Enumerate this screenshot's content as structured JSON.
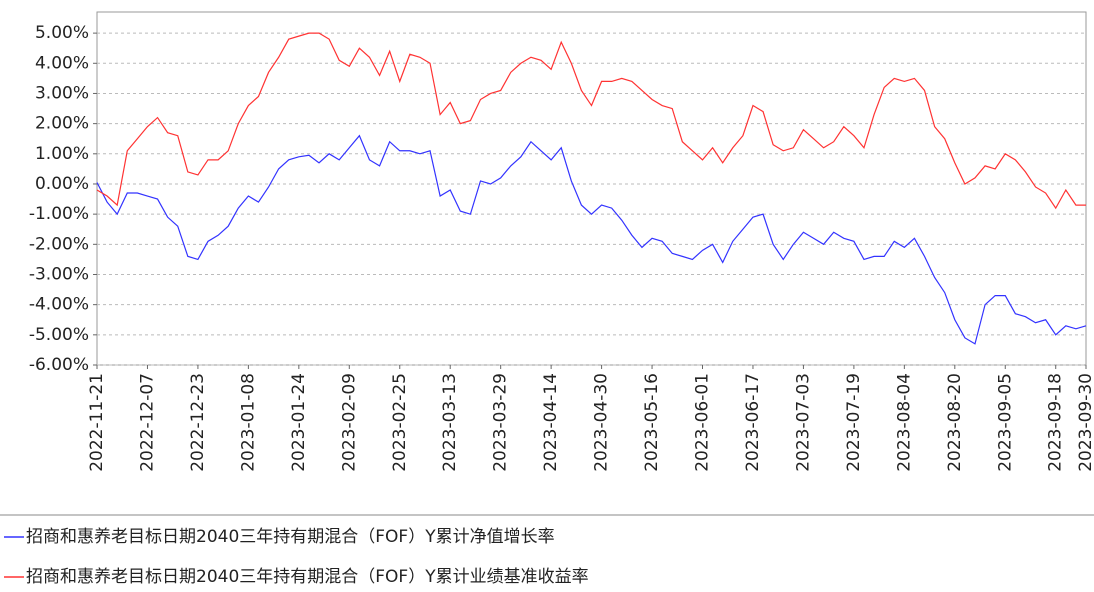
{
  "chart_data": {
    "type": "line",
    "categories": [
      "2022-11-21",
      null,
      null,
      null,
      null,
      "2022-12-07",
      null,
      null,
      null,
      null,
      "2022-12-23",
      null,
      null,
      null,
      null,
      "2023-01-08",
      null,
      null,
      null,
      null,
      "2023-01-24",
      null,
      null,
      null,
      null,
      "2023-02-09",
      null,
      null,
      null,
      null,
      "2023-02-25",
      null,
      null,
      null,
      null,
      "2023-03-13",
      null,
      null,
      null,
      null,
      "2023-03-29",
      null,
      null,
      null,
      null,
      "2023-04-14",
      null,
      null,
      null,
      null,
      "2023-04-30",
      null,
      null,
      null,
      null,
      "2023-05-16",
      null,
      null,
      null,
      null,
      "2023-06-01",
      null,
      null,
      null,
      null,
      "2023-06-17",
      null,
      null,
      null,
      null,
      "2023-07-03",
      null,
      null,
      null,
      null,
      "2023-07-19",
      null,
      null,
      null,
      null,
      "2023-08-04",
      null,
      null,
      null,
      null,
      "2023-08-20",
      null,
      null,
      null,
      null,
      "2023-09-05",
      null,
      null,
      null,
      null,
      "2023-09-18",
      null,
      null,
      "2023-09-30"
    ],
    "series": [
      {
        "name": "招商和惠养老目标日期2040三年持有期混合（FOF）Y累计净值增长率",
        "color": "#3333ff",
        "values": [
          0.05,
          -0.6,
          -1.0,
          -0.3,
          -0.3,
          -0.4,
          -0.5,
          -1.1,
          -1.4,
          -2.4,
          -2.5,
          -1.9,
          -1.7,
          -1.4,
          -0.8,
          -0.4,
          -0.6,
          -0.1,
          0.5,
          0.8,
          0.9,
          0.95,
          0.7,
          1.0,
          0.8,
          1.2,
          1.6,
          0.8,
          0.6,
          1.4,
          1.1,
          1.1,
          1.0,
          1.1,
          -0.4,
          -0.2,
          -0.9,
          -1.0,
          0.1,
          0.0,
          0.2,
          0.6,
          0.9,
          1.4,
          1.1,
          0.8,
          1.2,
          0.1,
          -0.7,
          -1.0,
          -0.7,
          -0.8,
          -1.2,
          -1.7,
          -2.1,
          -1.8,
          -1.9,
          -2.3,
          -2.4,
          -2.5,
          -2.2,
          -2.0,
          -2.6,
          -1.9,
          -1.5,
          -1.1,
          -1.0,
          -2.0,
          -2.5,
          -2.0,
          -1.6,
          -1.8,
          -2.0,
          -1.6,
          -1.8,
          -1.9,
          -2.5,
          -2.4,
          -2.4,
          -1.9,
          -2.1,
          -1.8,
          -2.4,
          -3.1,
          -3.6,
          -4.5,
          -5.1,
          -5.3,
          -4.0,
          -3.7,
          -3.7,
          -4.3,
          -4.4,
          -4.6,
          -4.5,
          -5.0,
          -4.7,
          -4.8,
          -4.7
        ]
      },
      {
        "name": "招商和惠养老目标日期2040三年持有期混合（FOF）Y累计业绩基准收益率",
        "color": "#ff3333",
        "values": [
          -0.2,
          -0.4,
          -0.7,
          1.1,
          1.5,
          1.9,
          2.2,
          1.7,
          1.6,
          0.4,
          0.3,
          0.8,
          0.8,
          1.1,
          2.0,
          2.6,
          2.9,
          3.7,
          4.2,
          4.8,
          4.9,
          5.0,
          5.0,
          4.8,
          4.1,
          3.9,
          4.5,
          4.2,
          3.6,
          4.4,
          3.4,
          4.3,
          4.2,
          4.0,
          2.3,
          2.7,
          2.0,
          2.1,
          2.8,
          3.0,
          3.1,
          3.7,
          4.0,
          4.2,
          4.1,
          3.8,
          4.7,
          4.0,
          3.1,
          2.6,
          3.4,
          3.4,
          3.5,
          3.4,
          3.1,
          2.8,
          2.6,
          2.5,
          1.4,
          1.1,
          0.8,
          1.2,
          0.7,
          1.2,
          1.6,
          2.6,
          2.4,
          1.3,
          1.1,
          1.2,
          1.8,
          1.5,
          1.2,
          1.4,
          1.9,
          1.6,
          1.2,
          2.3,
          3.2,
          3.5,
          3.4,
          3.5,
          3.1,
          1.9,
          1.5,
          0.7,
          0.0,
          0.2,
          0.6,
          0.5,
          1.0,
          0.8,
          0.4,
          -0.1,
          -0.3,
          -0.8,
          -0.2,
          -0.7,
          -0.7
        ]
      }
    ],
    "ylim": [
      -6,
      5.7
    ],
    "yticks": [
      {
        "value": 5,
        "label": "5.00%"
      },
      {
        "value": 4,
        "label": "4.00%"
      },
      {
        "value": 3,
        "label": "3.00%"
      },
      {
        "value": 2,
        "label": "2.00%"
      },
      {
        "value": 1,
        "label": "1.00%"
      },
      {
        "value": 0,
        "label": "0.00%"
      },
      {
        "value": -1,
        "label": "-1.00%"
      },
      {
        "value": -2,
        "label": "-2.00%"
      },
      {
        "value": -3,
        "label": "-3.00%"
      },
      {
        "value": -4,
        "label": "-4.00%"
      },
      {
        "value": -5,
        "label": "-5.00%"
      },
      {
        "value": -6,
        "label": "-6.00%"
      }
    ],
    "grid": true
  }
}
